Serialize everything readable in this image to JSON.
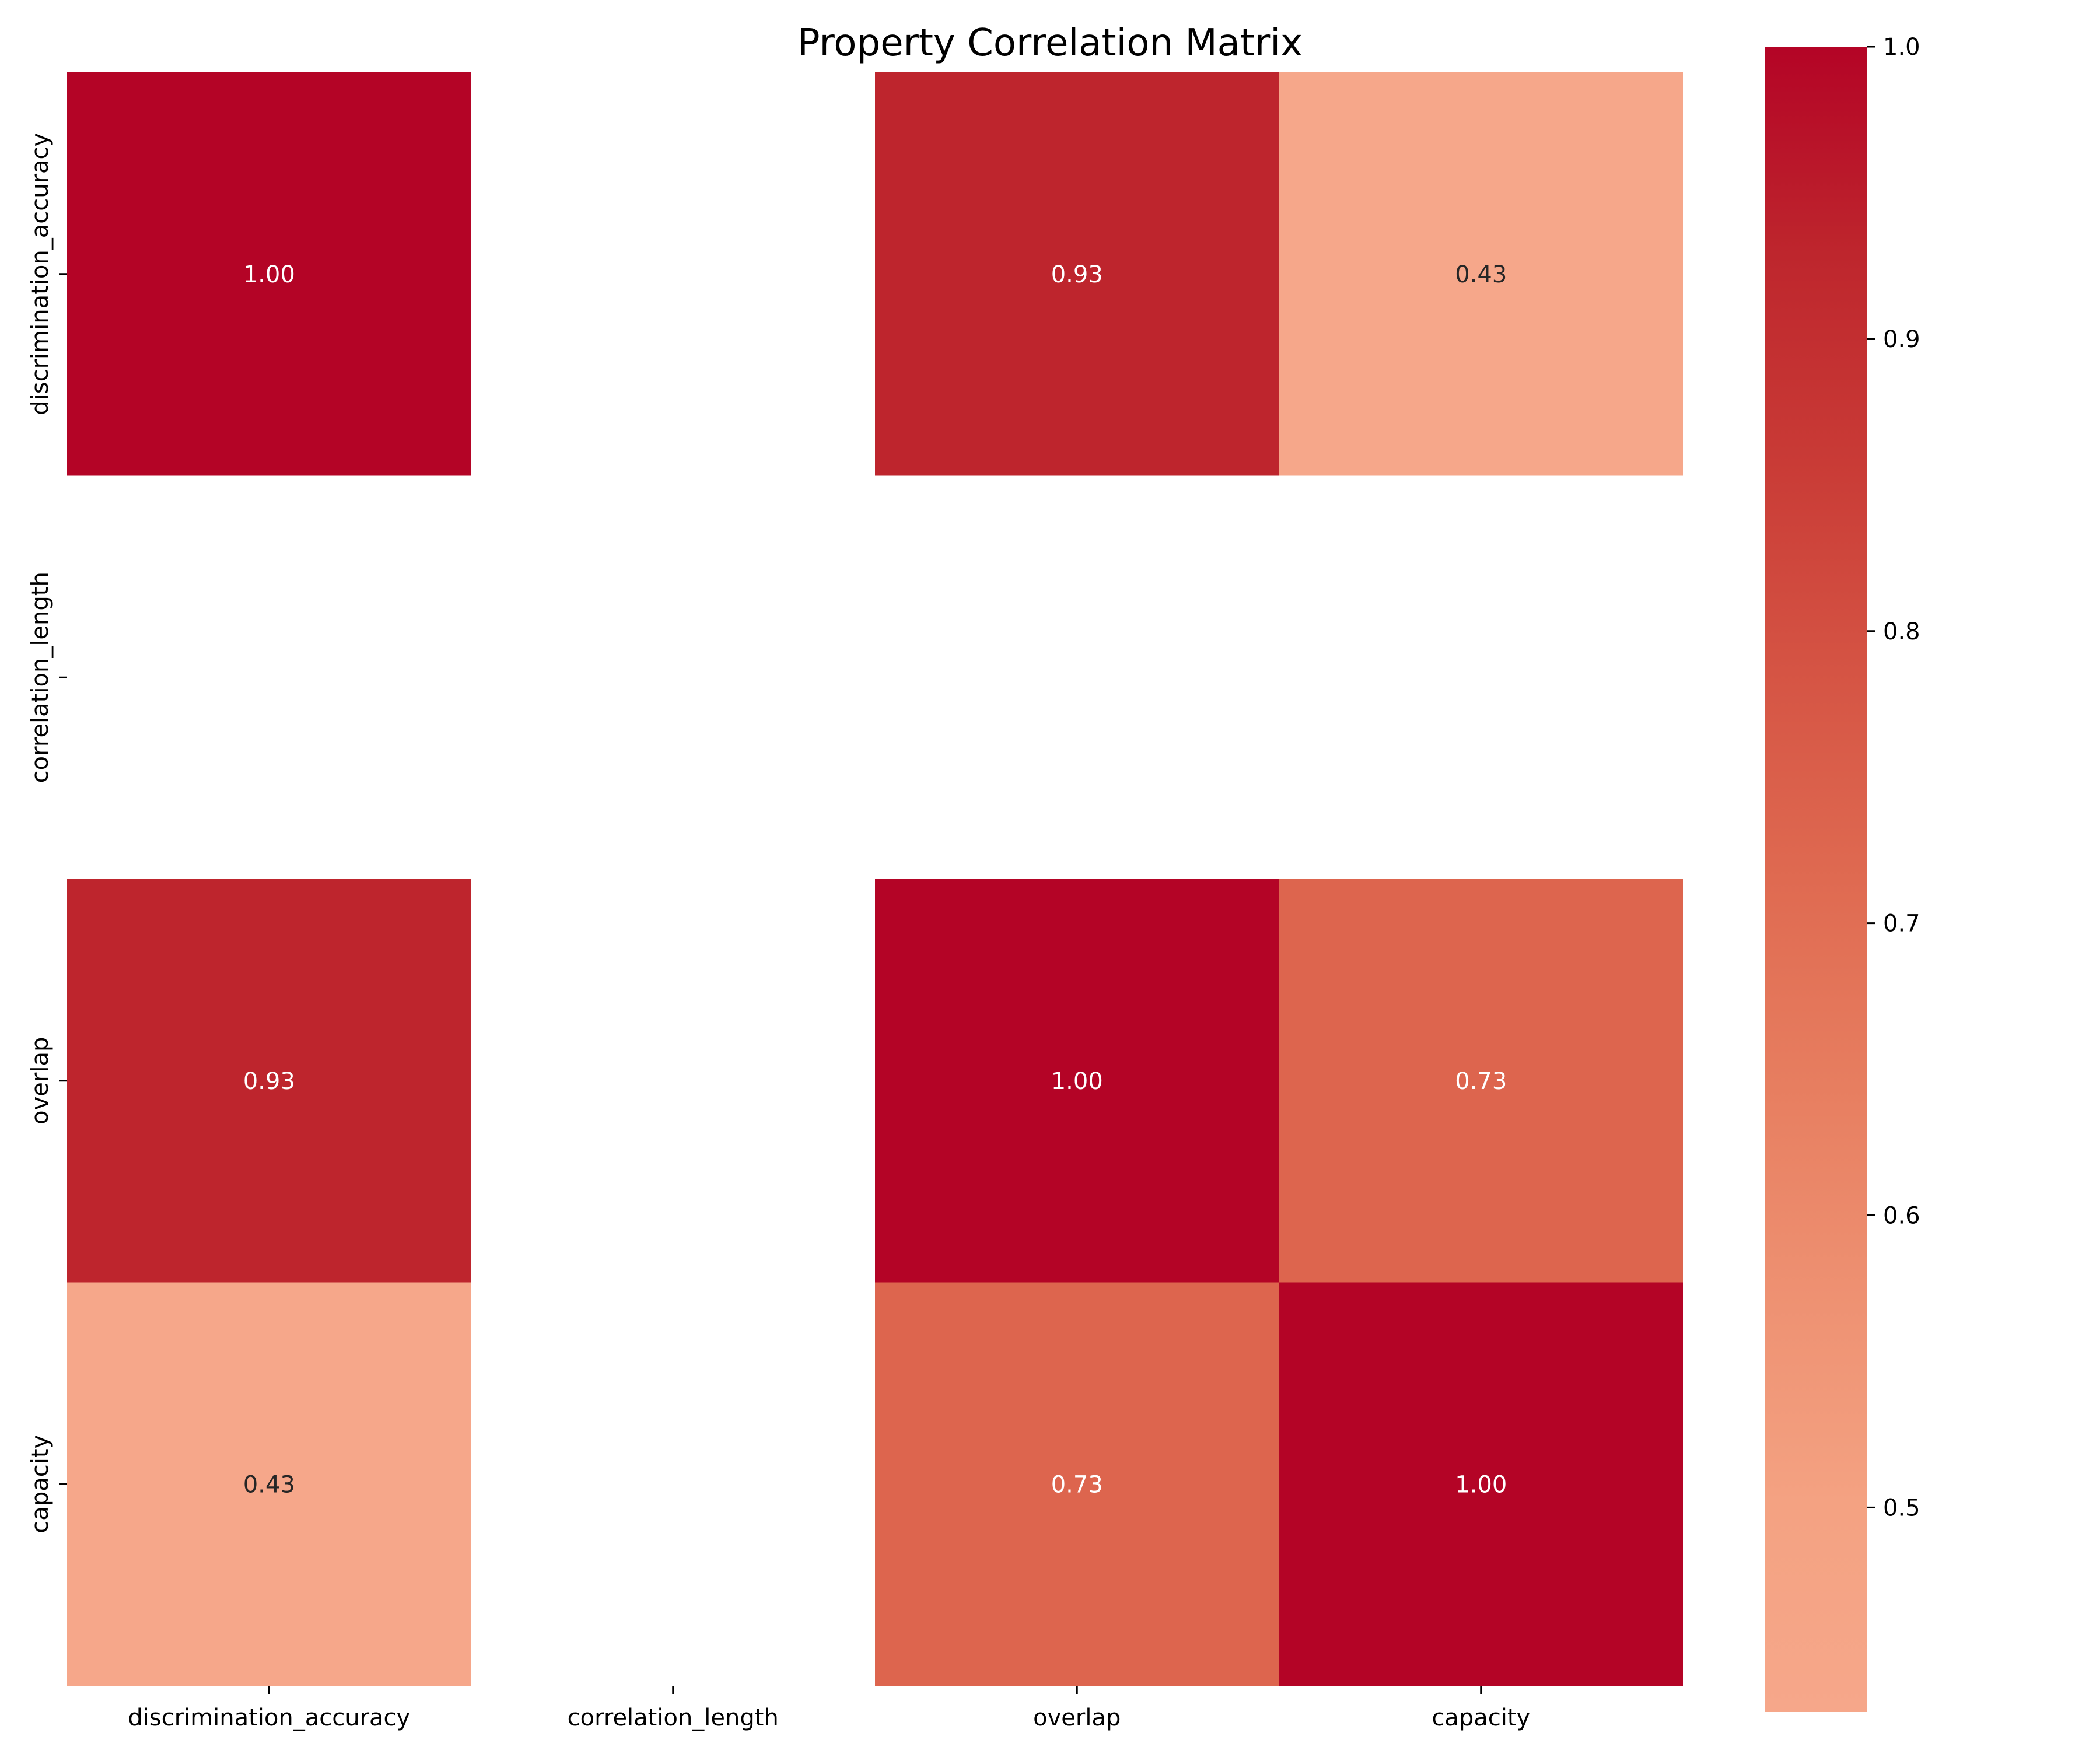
{
  "chart_data": {
    "type": "heatmap",
    "title": "Property Correlation Matrix",
    "xlabel": "",
    "ylabel": "",
    "row_labels": [
      "discrimination_accuracy",
      "correlation_length",
      "overlap",
      "capacity"
    ],
    "column_labels": [
      "discrimination_accuracy",
      "correlation_length",
      "overlap",
      "capacity"
    ],
    "values": [
      [
        1.0,
        null,
        0.93,
        0.43
      ],
      [
        null,
        null,
        null,
        null
      ],
      [
        0.93,
        null,
        1.0,
        0.73
      ],
      [
        0.43,
        null,
        0.73,
        1.0
      ]
    ],
    "cell_labels": [
      [
        "1.00",
        "",
        "0.93",
        "0.43"
      ],
      [
        "",
        "",
        "",
        ""
      ],
      [
        "0.93",
        "",
        "1.00",
        "0.73"
      ],
      [
        "0.43",
        "",
        "0.73",
        "1.00"
      ]
    ],
    "colorbar": {
      "range": [
        0.43,
        1.0
      ],
      "ticks": [
        "0.5",
        "0.6",
        "0.7",
        "0.8",
        "0.9",
        "1.0"
      ],
      "colors": [
        "#f6a78a",
        "#f4a282",
        "#ee9172",
        "#e77e60",
        "#df6a51",
        "#d55444",
        "#c93b36",
        "#be262d",
        "#b40426"
      ]
    },
    "legend": "none",
    "grid": false
  }
}
